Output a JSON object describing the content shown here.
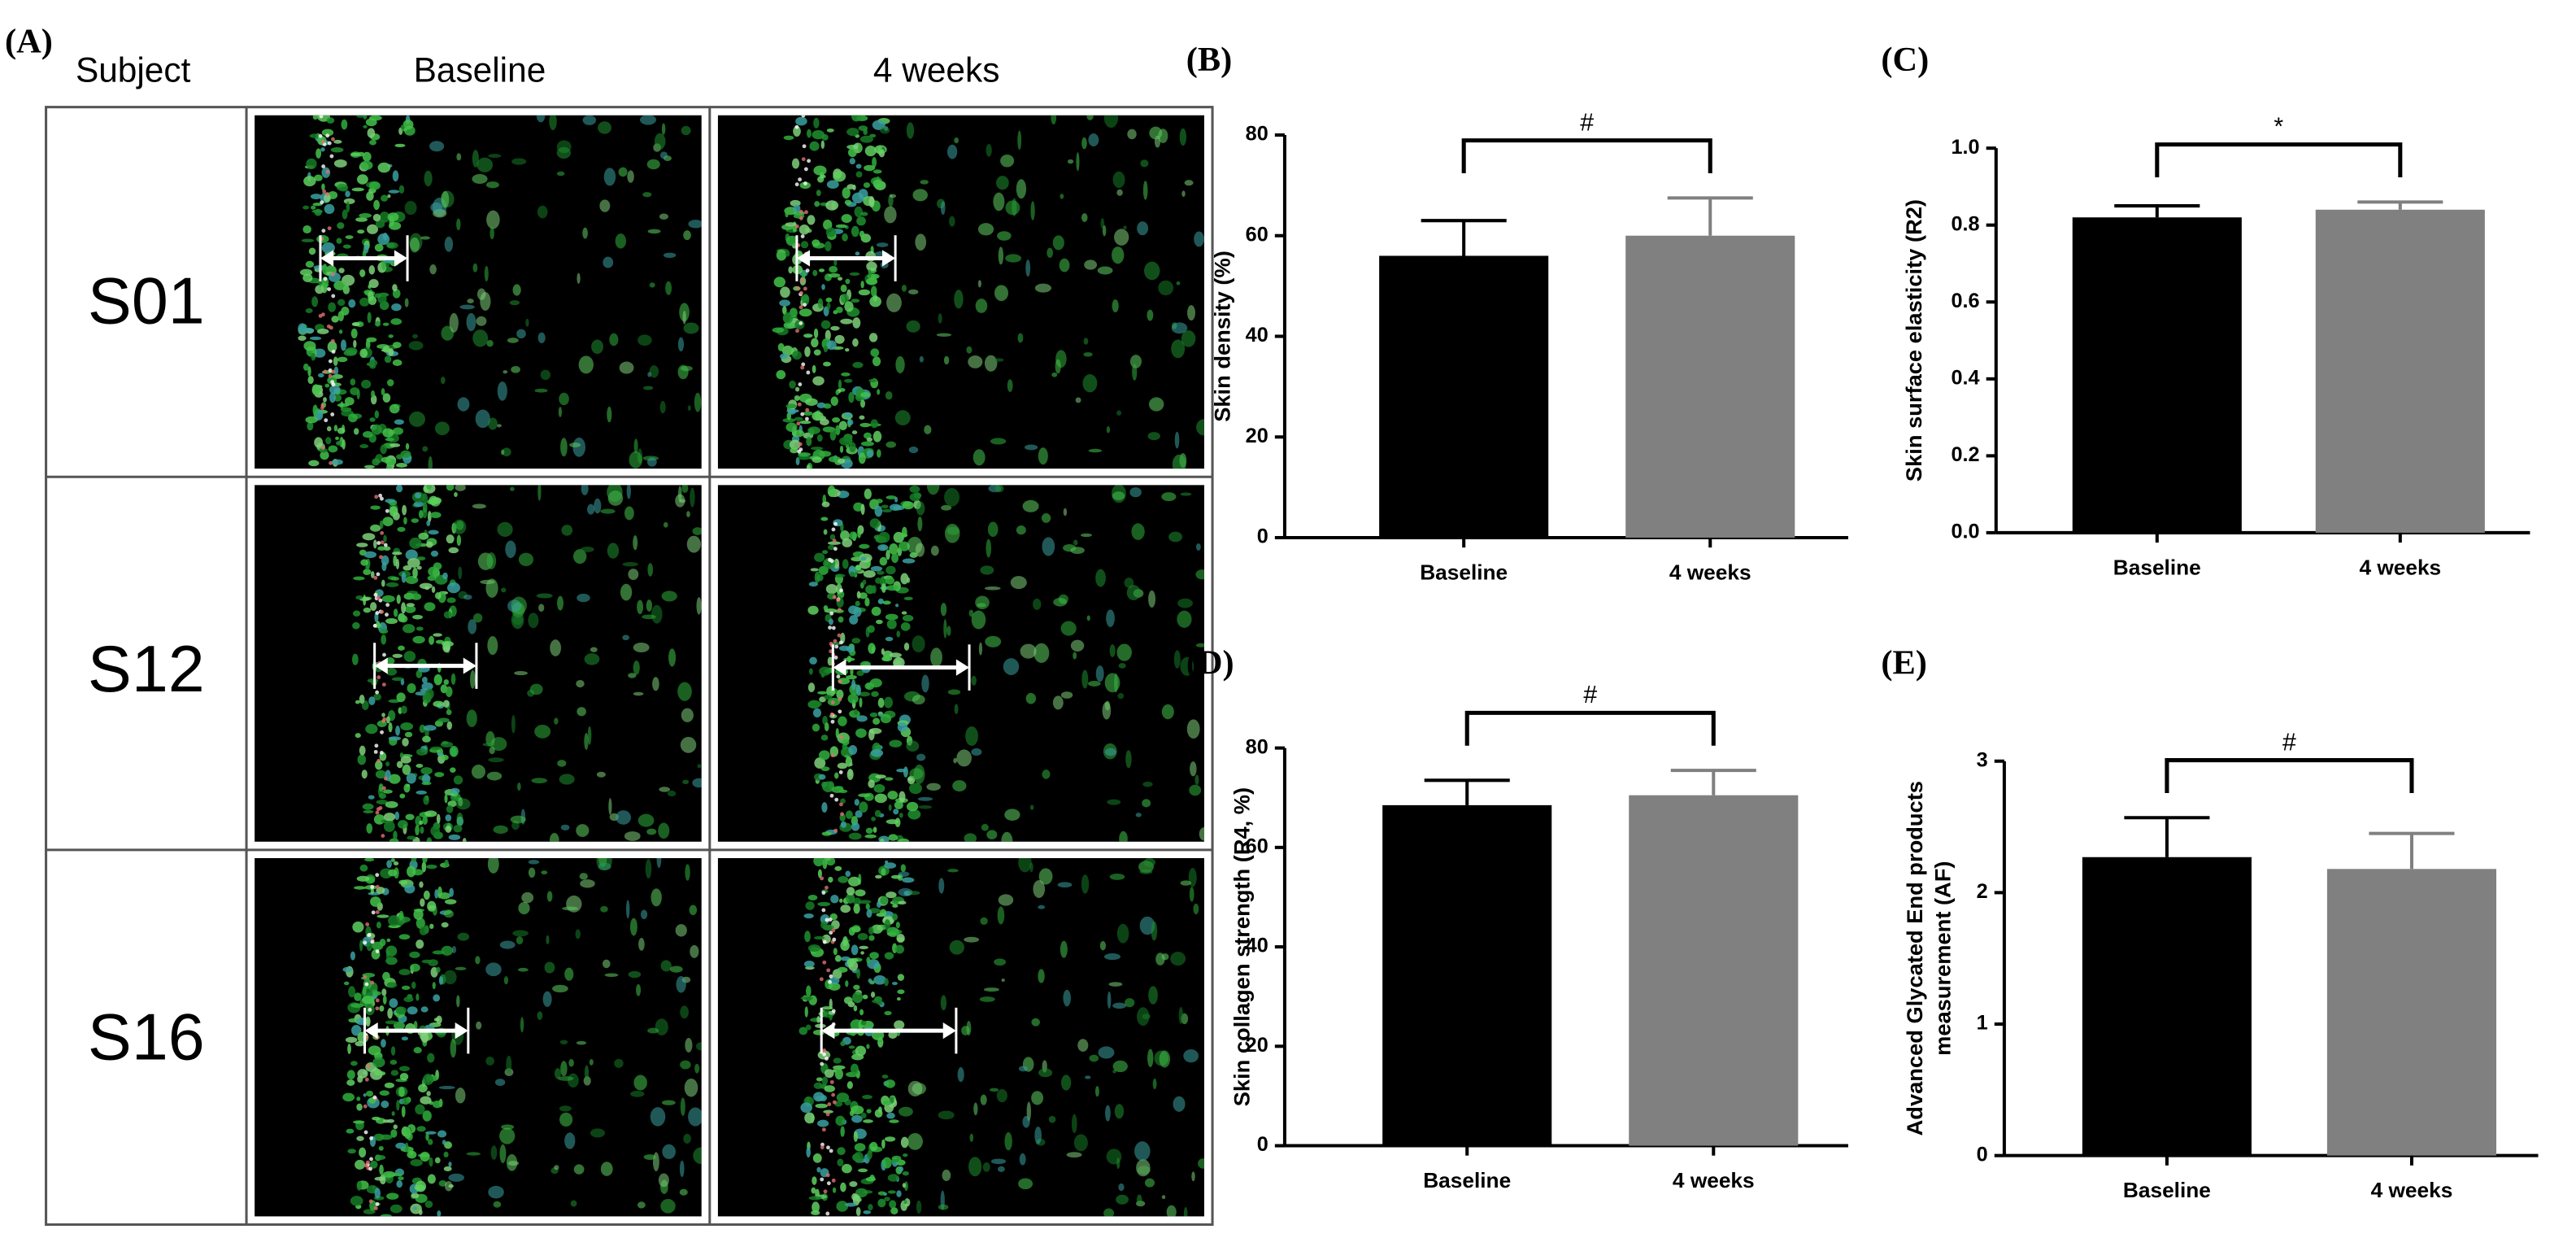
{
  "panel_a": {
    "label": "(A)",
    "column_headers": [
      "Subject",
      "Baseline",
      "4 weeks"
    ],
    "rows": [
      "S01",
      "S12",
      "S16"
    ]
  },
  "chart_data": [
    {
      "type": "bar",
      "panel_label": "(B)",
      "y_label": "Skin density (%)",
      "categories": [
        "Baseline",
        "4 weeks"
      ],
      "values": [
        56,
        60
      ],
      "errors": [
        7,
        7.5
      ],
      "colors": [
        "#000000",
        "#808080"
      ],
      "ylim": [
        0,
        80
      ],
      "yticks": [
        0,
        20,
        40,
        60,
        80
      ],
      "annotation": "#"
    },
    {
      "type": "bar",
      "panel_label": "(C)",
      "y_label": "Skin surface elasticity (R2)",
      "categories": [
        "Baseline",
        "4 weeks"
      ],
      "values": [
        0.82,
        0.84
      ],
      "errors": [
        0.03,
        0.02
      ],
      "colors": [
        "#000000",
        "#808080"
      ],
      "ylim": [
        0,
        1.0
      ],
      "yticks": [
        {
          "value": 0,
          "label": "0.0"
        },
        0.2,
        0.4,
        0.6,
        0.8,
        {
          "value": 1.0,
          "label": "1.0"
        }
      ],
      "annotation": "*"
    },
    {
      "type": "bar",
      "panel_label": "(D)",
      "y_label": "Skin collagen strength (R4, %)",
      "categories": [
        "Baseline",
        "4 weeks"
      ],
      "values": [
        68.5,
        70.5
      ],
      "errors": [
        5,
        5
      ],
      "colors": [
        "#000000",
        "#808080"
      ],
      "ylim": [
        0,
        80
      ],
      "yticks": [
        0,
        20,
        40,
        60,
        80
      ],
      "annotation": "#"
    },
    {
      "type": "bar",
      "panel_label": "(E)",
      "y_label": [
        "Advanced Glycated End products",
        "measurement (AF)"
      ],
      "categories": [
        "Baseline",
        "4 weeks"
      ],
      "values": [
        2.27,
        2.18
      ],
      "errors": [
        0.3,
        0.27
      ],
      "colors": [
        "#000000",
        "#808080"
      ],
      "ylim": [
        0,
        3
      ],
      "yticks": [
        0,
        1,
        2,
        3
      ],
      "annotation": "#"
    }
  ]
}
